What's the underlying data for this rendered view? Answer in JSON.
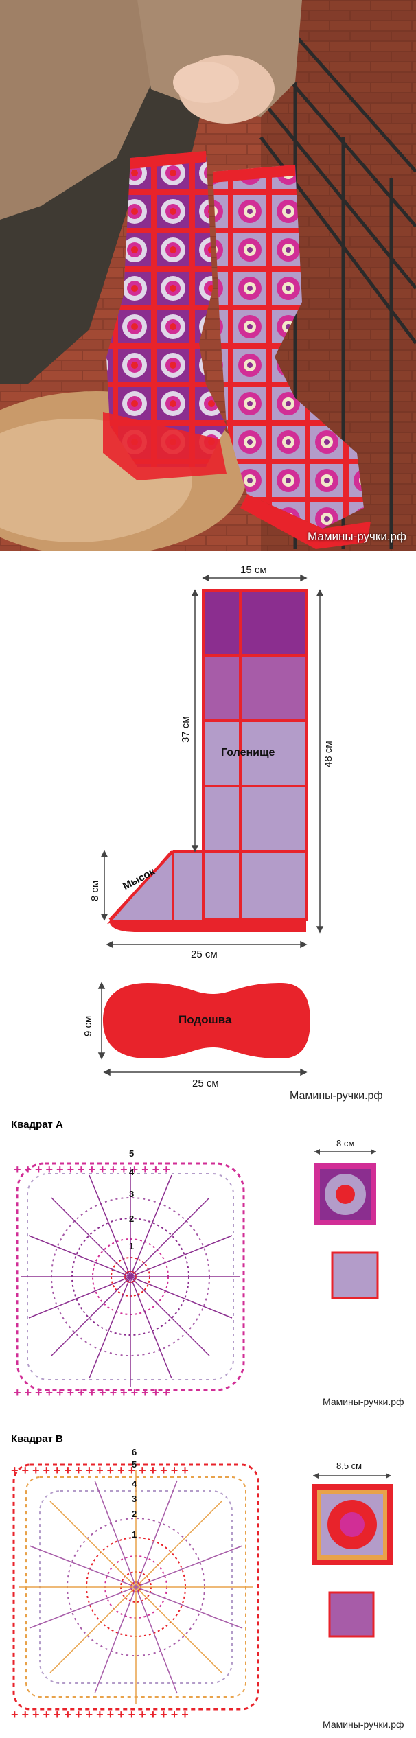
{
  "watermark": "Мамины-ручки.рф",
  "pattern": {
    "width_top": "15 см",
    "height_shaft": "37 см",
    "height_total": "48 см",
    "shaft_label": "Голенище",
    "toe_label": "Мысок",
    "toe_height": "8 см",
    "width_bottom": "25 см",
    "sole_label": "Подошва",
    "sole_height": "9 см",
    "sole_width": "25 см"
  },
  "square_a": {
    "title": "Квадрат А",
    "size": "8 см",
    "rows": [
      "1",
      "2",
      "3",
      "4",
      "5"
    ]
  },
  "square_b": {
    "title": "Квадрат В",
    "size": "8,5 см",
    "rows": [
      "1",
      "2",
      "3",
      "4",
      "5",
      "6"
    ]
  },
  "colors": {
    "red": "#e8232b",
    "magenta": "#d12e96",
    "purple": "#8b2e8f",
    "mauve": "#a75ca8",
    "lilac": "#b39cc9",
    "lilac_light": "#c4a9d2",
    "orange": "#e8a24a"
  },
  "icons": [
    "photo-of-crochet-boots",
    "crochet-chart-square-a",
    "crochet-chart-square-b"
  ]
}
